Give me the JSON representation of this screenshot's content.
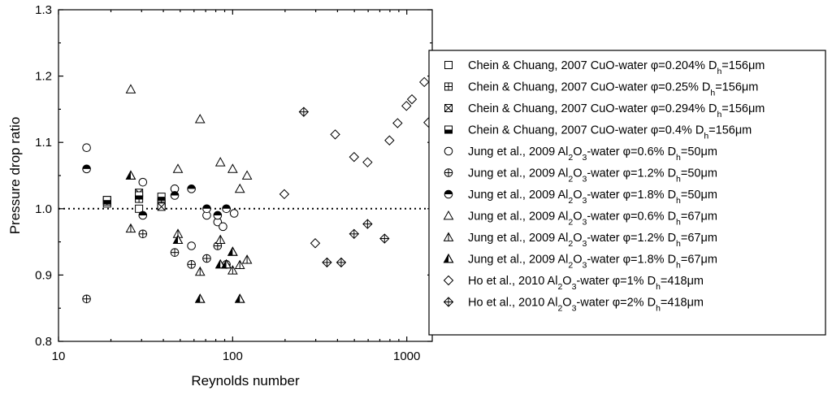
{
  "chart_data": {
    "type": "scatter",
    "xlabel": "Reynolds number",
    "ylabel": "Pressure drop ratio",
    "xscale": "log",
    "xlim": [
      10,
      1400
    ],
    "ylim": [
      0.8,
      1.3
    ],
    "x_ticks": [
      10,
      100,
      1000
    ],
    "y_ticks": [
      0.8,
      0.9,
      1.0,
      1.1,
      1.2,
      1.3
    ],
    "x_tick_labels": [
      "10",
      "100",
      "1000"
    ],
    "y_tick_labels": [
      "0.8",
      "0.9",
      "1.0",
      "1.1",
      "1.2",
      "1.3"
    ],
    "reference_line": {
      "y": 1.0,
      "style": "dotted"
    },
    "legend_position": "right",
    "series": [
      {
        "name": "Chein & Chuang, 2007 CuO-water φ=0.204% D_h=156μm",
        "legend": {
          "pre": "Chein & Chuang, 2007 CuO-water φ=0.204% D",
          "sub1": "h",
          "mid": "",
          "sub2": "",
          "post": "=156μm"
        },
        "marker": "square-open",
        "points": [
          [
            19,
            1.008
          ],
          [
            29,
            1.0
          ],
          [
            39,
            1.006
          ]
        ]
      },
      {
        "name": "Chein & Chuang, 2007 CuO-water φ=0.25% D_h=156μm",
        "legend": {
          "pre": "Chein & Chuang, 2007 CuO-water φ=0.25% D",
          "sub1": "h",
          "mid": "",
          "sub2": "",
          "post": "=156μm"
        },
        "marker": "square-plus",
        "points": [
          [
            19,
            1.011
          ],
          [
            29,
            1.015
          ],
          [
            39,
            1.01
          ]
        ]
      },
      {
        "name": "Chein & Chuang, 2007 CuO-water φ=0.294% D_h=156μm",
        "legend": {
          "pre": "Chein & Chuang, 2007 CuO-water φ=0.294% D",
          "sub1": "h",
          "mid": "",
          "sub2": "",
          "post": "=156μm"
        },
        "marker": "square-x",
        "points": [
          [
            19,
            1.013
          ],
          [
            29,
            1.024
          ],
          [
            39,
            1.003
          ]
        ]
      },
      {
        "name": "Chein & Chuang, 2007 CuO-water φ=0.4% D_h=156μm",
        "legend": {
          "pre": "Chein & Chuang, 2007 CuO-water φ=0.4% D",
          "sub1": "h",
          "mid": "",
          "sub2": "",
          "post": "=156μm"
        },
        "marker": "square-half",
        "points": [
          [
            19,
            1.013
          ],
          [
            29,
            1.02
          ],
          [
            39,
            1.018
          ]
        ]
      },
      {
        "name": "Jung et al., 2009 Al2O3-water φ=0.6% D_h=50μm",
        "legend": {
          "pre": "Jung et al., 2009 Al",
          "sub1": "2",
          "mid": "O",
          "sub2": "3",
          "post": "-water φ=0.6% D_h=50μm"
        },
        "marker": "circle-open",
        "points": [
          [
            14.5,
            1.092
          ],
          [
            30.5,
            1.04
          ],
          [
            46.5,
            1.03
          ],
          [
            58,
            0.944
          ],
          [
            71,
            0.99
          ],
          [
            82,
            0.98
          ],
          [
            88,
            0.973
          ],
          [
            102,
            0.993
          ]
        ]
      },
      {
        "name": "Jung et al., 2009 Al2O3-water φ=1.2% D_h=50μm",
        "legend": {
          "pre": "Jung et al., 2009 Al",
          "sub1": "2",
          "mid": "O",
          "sub2": "3",
          "post": "-water φ=1.2% D_h=50μm"
        },
        "marker": "circle-plus",
        "points": [
          [
            14.5,
            0.864
          ],
          [
            30.5,
            0.962
          ],
          [
            46.5,
            0.934
          ],
          [
            58,
            0.916
          ],
          [
            71,
            0.925
          ],
          [
            82,
            0.944
          ],
          [
            92,
            0.916
          ]
        ]
      },
      {
        "name": "Jung et al., 2009 Al2O3-water φ=1.8% D_h=50μm",
        "legend": {
          "pre": "Jung et al., 2009 Al",
          "sub1": "2",
          "mid": "O",
          "sub2": "3",
          "post": "-water φ=1.8% D_h=50μm"
        },
        "marker": "circle-half",
        "points": [
          [
            14.5,
            1.06
          ],
          [
            30.5,
            0.99
          ],
          [
            46.5,
            1.02
          ],
          [
            58,
            1.03
          ],
          [
            71,
            1.0
          ],
          [
            82,
            0.99
          ],
          [
            92,
            1.0
          ]
        ]
      },
      {
        "name": "Jung et al., 2009 Al2O3-water φ=0.6% D_h=67μm",
        "legend": {
          "pre": "Jung et al., 2009 Al",
          "sub1": "2",
          "mid": "O",
          "sub2": "3",
          "post": "-water φ=0.6% D_h=67μm"
        },
        "marker": "triangle-open",
        "points": [
          [
            26,
            1.18
          ],
          [
            48.5,
            1.06
          ],
          [
            65,
            1.135
          ],
          [
            85,
            1.07
          ],
          [
            100,
            1.06
          ],
          [
            110,
            1.03
          ],
          [
            121,
            1.05
          ]
        ]
      },
      {
        "name": "Jung et al., 2009 Al2O3-water φ=1.2% D_h=67μm",
        "legend": {
          "pre": "Jung et al., 2009 Al",
          "sub1": "2",
          "mid": "O",
          "sub2": "3",
          "post": "-water φ=1.2% D_h=67μm"
        },
        "marker": "triangle-line",
        "points": [
          [
            26,
            0.97
          ],
          [
            48.5,
            0.962
          ],
          [
            65,
            0.905
          ],
          [
            85,
            0.953
          ],
          [
            100,
            0.907
          ],
          [
            110,
            0.915
          ],
          [
            121,
            0.923
          ]
        ]
      },
      {
        "name": "Jung et al., 2009 Al2O3-water φ=1.8% D_h=67μm",
        "legend": {
          "pre": "Jung et al., 2009 Al",
          "sub1": "2",
          "mid": "O",
          "sub2": "3",
          "post": "-water φ=1.8% D_h=67μm"
        },
        "marker": "triangle-half",
        "points": [
          [
            26,
            1.05
          ],
          [
            48.5,
            0.953
          ],
          [
            65,
            0.864
          ],
          [
            85,
            0.916
          ],
          [
            100,
            0.935
          ],
          [
            110,
            0.864
          ],
          [
            92,
            0.916
          ]
        ]
      },
      {
        "name": "Ho et al., 2010 Al2O3-water φ=1% D_h=418μm",
        "legend": {
          "pre": "Ho et al., 2010 Al",
          "sub1": "2",
          "mid": "O",
          "sub2": "3",
          "post": "-water φ=1% D_h=418μm"
        },
        "marker": "diamond-open",
        "points": [
          [
            198,
            1.022
          ],
          [
            298,
            0.948
          ],
          [
            388,
            1.112
          ],
          [
            498,
            1.078
          ],
          [
            595,
            1.07
          ],
          [
            795,
            1.103
          ],
          [
            885,
            1.129
          ],
          [
            995,
            1.155
          ],
          [
            1070,
            1.165
          ],
          [
            1260,
            1.191
          ],
          [
            1330,
            1.13
          ]
        ]
      },
      {
        "name": "Ho et al., 2010 Al2O3-water φ=2% D_h=418μm",
        "legend": {
          "pre": "Ho et al., 2010 Al",
          "sub1": "2",
          "mid": "O",
          "sub2": "3",
          "post": "-water φ=2% D_h=418μm"
        },
        "marker": "diamond-plus",
        "points": [
          [
            256,
            1.146
          ],
          [
            348,
            0.919
          ],
          [
            420,
            0.919
          ],
          [
            498,
            0.962
          ],
          [
            595,
            0.977
          ],
          [
            745,
            0.955
          ]
        ]
      }
    ]
  }
}
